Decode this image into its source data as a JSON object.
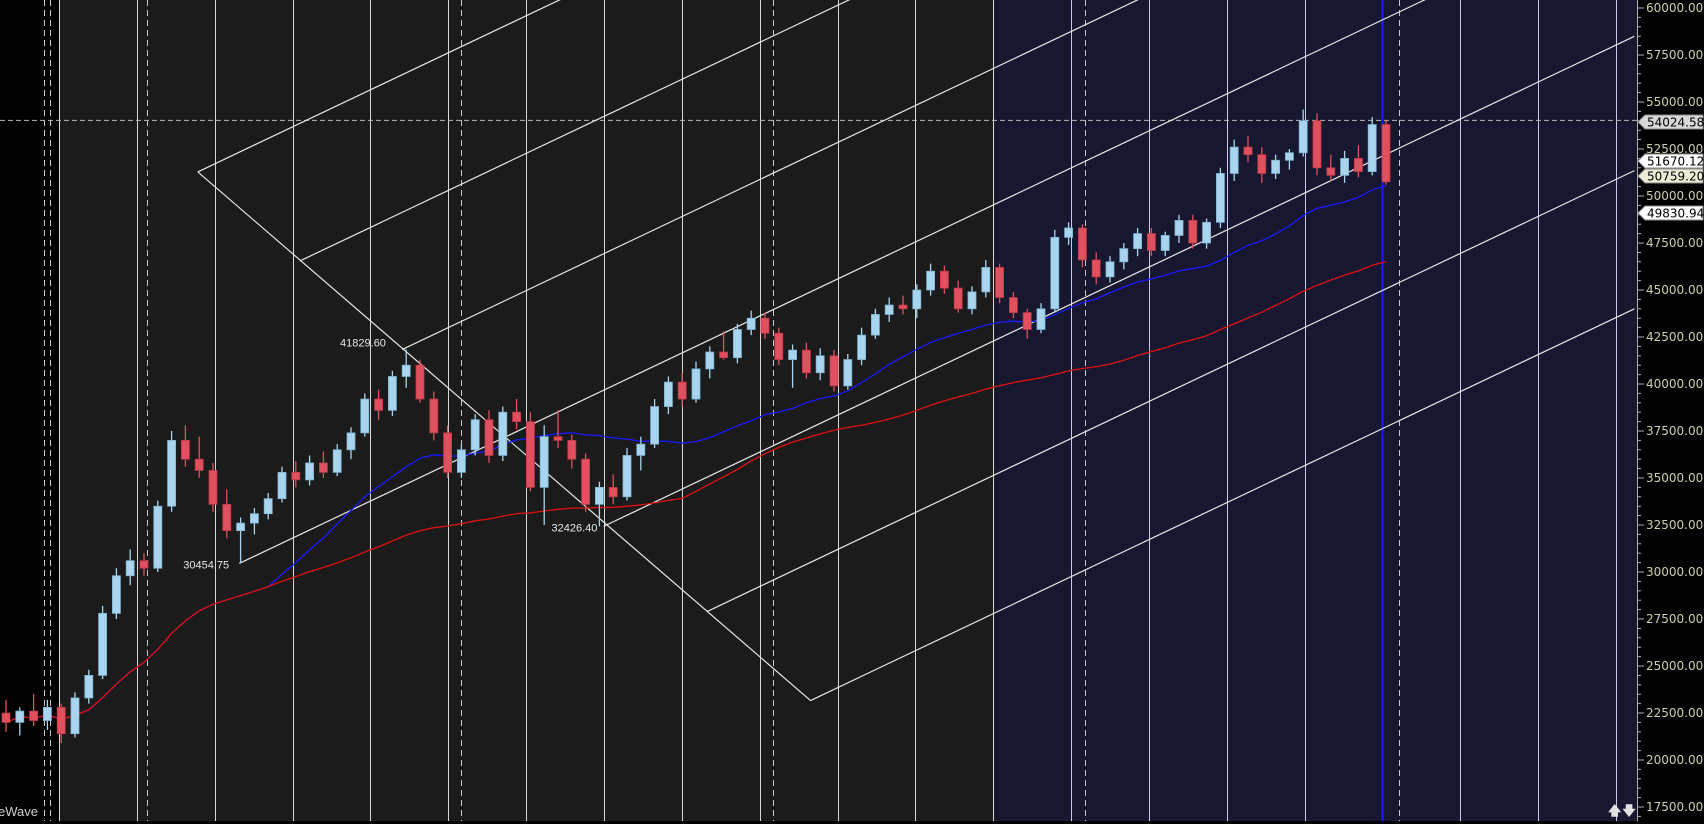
{
  "watermark": "eWave",
  "scroll": {
    "up_icon": "arrow-up-icon",
    "down_icon": "arrow-down-icon",
    "up": "🡅",
    "down": "🡇"
  },
  "colors": {
    "up_candle": "#a8d4ee",
    "down_candle": "#e0505e",
    "ma_fast": "#1a1aff",
    "ma_slow": "#e01010",
    "shaded_region": "#171830",
    "background": "#1b1b1b"
  },
  "chart_data": {
    "type": "candlestick",
    "ylim": [
      17500,
      60000
    ],
    "y_ticks": [
      "60000.00",
      "57500.00",
      "55000.00",
      "52500.00",
      "50000.00",
      "47500.00",
      "45000.00",
      "42500.00",
      "40000.00",
      "37500.00",
      "35000.00",
      "32500.00",
      "30000.00",
      "27500.00",
      "25000.00",
      "22500.00",
      "20000.00",
      "17500.00"
    ],
    "grid": true,
    "ohlc": [
      [
        22500,
        23200,
        21500,
        22000
      ],
      [
        22000,
        22800,
        21300,
        22600
      ],
      [
        22600,
        23500,
        21800,
        22100
      ],
      [
        22100,
        23200,
        21600,
        22800
      ],
      [
        22800,
        23000,
        20900,
        21400
      ],
      [
        21400,
        23600,
        21200,
        23300
      ],
      [
        23300,
        24800,
        23000,
        24500
      ],
      [
        24500,
        28200,
        24300,
        27800
      ],
      [
        27800,
        30200,
        27500,
        29800
      ],
      [
        29800,
        31200,
        29300,
        30600
      ],
      [
        30600,
        31000,
        29800,
        30200
      ],
      [
        30200,
        33800,
        30000,
        33500
      ],
      [
        33500,
        37500,
        33200,
        37000
      ],
      [
        37000,
        37800,
        35600,
        36000
      ],
      [
        36000,
        37200,
        35000,
        35400
      ],
      [
        35400,
        35800,
        33200,
        33600
      ],
      [
        33600,
        34400,
        31800,
        32200
      ],
      [
        32200,
        32900,
        30454.75,
        32600
      ],
      [
        32600,
        33400,
        32000,
        33100
      ],
      [
        33100,
        34200,
        32800,
        33900
      ],
      [
        33900,
        35600,
        33700,
        35300
      ],
      [
        35300,
        35900,
        34500,
        34900
      ],
      [
        34900,
        36200,
        34600,
        35800
      ],
      [
        35800,
        36400,
        35000,
        35300
      ],
      [
        35300,
        36800,
        35100,
        36500
      ],
      [
        36500,
        37700,
        36000,
        37400
      ],
      [
        37400,
        39500,
        37200,
        39200
      ],
      [
        39200,
        39700,
        38100,
        38600
      ],
      [
        38600,
        40700,
        38300,
        40400
      ],
      [
        40400,
        41829.6,
        39800,
        41000
      ],
      [
        41000,
        41300,
        39000,
        39200
      ],
      [
        39200,
        39600,
        37000,
        37400
      ],
      [
        37400,
        37800,
        35000,
        35300
      ],
      [
        35300,
        36800,
        35000,
        36500
      ],
      [
        36500,
        38400,
        36200,
        38100
      ],
      [
        38100,
        38600,
        35800,
        36200
      ],
      [
        36200,
        38800,
        35900,
        38500
      ],
      [
        38500,
        39200,
        37600,
        38000
      ],
      [
        38000,
        38500,
        34300,
        34500
      ],
      [
        34500,
        37800,
        32500,
        37200
      ],
      [
        37200,
        38600,
        36600,
        37000
      ],
      [
        37000,
        37300,
        35500,
        36000
      ],
      [
        36000,
        36300,
        33200,
        33600
      ],
      [
        33600,
        34800,
        32426.4,
        34500
      ],
      [
        34500,
        35200,
        33600,
        34000
      ],
      [
        34000,
        36600,
        33800,
        36200
      ],
      [
        36200,
        37200,
        35400,
        36800
      ],
      [
        36800,
        39200,
        36600,
        38800
      ],
      [
        38800,
        40400,
        38400,
        40100
      ],
      [
        40100,
        40600,
        38800,
        39200
      ],
      [
        39200,
        41200,
        39000,
        40800
      ],
      [
        40800,
        42000,
        40300,
        41700
      ],
      [
        41700,
        42800,
        41300,
        41400
      ],
      [
        41400,
        43200,
        41100,
        42900
      ],
      [
        42900,
        43900,
        42600,
        43500
      ],
      [
        43500,
        43800,
        42400,
        42700
      ],
      [
        42700,
        43000,
        41000,
        41300
      ],
      [
        41300,
        42100,
        39800,
        41800
      ],
      [
        41800,
        42200,
        40300,
        40600
      ],
      [
        40600,
        41900,
        40200,
        41500
      ],
      [
        41500,
        41800,
        39600,
        39900
      ],
      [
        39900,
        41600,
        39700,
        41300
      ],
      [
        41300,
        43000,
        41000,
        42600
      ],
      [
        42600,
        44000,
        42400,
        43700
      ],
      [
        43700,
        44600,
        43300,
        44200
      ],
      [
        44200,
        44700,
        43700,
        44000
      ],
      [
        44000,
        45300,
        43500,
        45000
      ],
      [
        45000,
        46400,
        44700,
        46000
      ],
      [
        46000,
        46300,
        44800,
        45100
      ],
      [
        45100,
        45500,
        43800,
        44000
      ],
      [
        44000,
        45200,
        43700,
        44900
      ],
      [
        44900,
        46600,
        44600,
        46200
      ],
      [
        46200,
        46400,
        44300,
        44600
      ],
      [
        44600,
        44900,
        43500,
        43800
      ],
      [
        43800,
        44000,
        42400,
        42900
      ],
      [
        42900,
        44300,
        42700,
        44000
      ],
      [
        44000,
        48200,
        43800,
        47800
      ],
      [
        47800,
        48600,
        47400,
        48300
      ],
      [
        48300,
        48500,
        46200,
        46600
      ],
      [
        46600,
        47000,
        45300,
        45700
      ],
      [
        45700,
        46800,
        45400,
        46500
      ],
      [
        46500,
        47500,
        46100,
        47200
      ],
      [
        47200,
        48300,
        46800,
        48000
      ],
      [
        48000,
        48300,
        46800,
        47100
      ],
      [
        47100,
        48100,
        46800,
        47900
      ],
      [
        47900,
        49000,
        47500,
        48700
      ],
      [
        48700,
        49000,
        47200,
        47500
      ],
      [
        47500,
        48800,
        47200,
        48600
      ],
      [
        48600,
        51500,
        48300,
        51200
      ],
      [
        51200,
        53000,
        50800,
        52600
      ],
      [
        52600,
        53200,
        51800,
        52200
      ],
      [
        52200,
        52600,
        50700,
        51200
      ],
      [
        51200,
        52200,
        50900,
        51900
      ],
      [
        51900,
        52500,
        51400,
        52300
      ],
      [
        52300,
        54600,
        52100,
        54000
      ],
      [
        54000,
        54400,
        51100,
        51500
      ],
      [
        51500,
        52200,
        50800,
        51100
      ],
      [
        51100,
        52400,
        50700,
        52000
      ],
      [
        52000,
        52700,
        51000,
        51300
      ],
      [
        51300,
        54200,
        51100,
        53800
      ],
      [
        53800,
        54024.58,
        50600,
        50759.2
      ]
    ],
    "moving_averages": [
      {
        "period": 20,
        "color": "#1a1aff"
      },
      {
        "period": 50,
        "color": "#e01010"
      }
    ],
    "price_line": 54024.58,
    "price_tags": [
      {
        "value": "54024.58",
        "bg": "#d8d8d8"
      },
      {
        "value": "51670.12",
        "bg": "#ffffff"
      },
      {
        "value": "50759.20",
        "bg": "#ecebd6"
      },
      {
        "value": "49830.94",
        "bg": "#ffffff"
      }
    ],
    "pivot_labels": [
      {
        "text": "41829.60",
        "bar": 28.7,
        "price": 41829.6
      },
      {
        "text": "30454.75",
        "bar": 16.9,
        "price": 30454.75
      },
      {
        "text": "32426.40",
        "bar": 43.3,
        "price": 32426.4
      }
    ],
    "trendlines": [
      {
        "from": [
          13.9,
          51282
        ],
        "to": [
          58.3,
          23163
        ]
      },
      {
        "from": [
          13.9,
          51282
        ],
        "to": [
          118,
          87613
        ]
      },
      {
        "from": [
          21.3,
          46546
        ],
        "to": [
          118,
          80294
        ]
      },
      {
        "from": [
          28.7,
          41829.6
        ],
        "to": [
          118,
          72995
        ]
      },
      {
        "from": [
          16.9,
          30454.75
        ],
        "to": [
          118,
          65738
        ]
      },
      {
        "from": [
          43.3,
          32426.4
        ],
        "to": [
          118,
          58496
        ]
      },
      {
        "from": [
          50.8,
          27896
        ],
        "to": [
          118,
          51349
        ]
      },
      {
        "from": [
          58.3,
          23163
        ],
        "to": [
          118,
          43998
        ]
      }
    ]
  }
}
